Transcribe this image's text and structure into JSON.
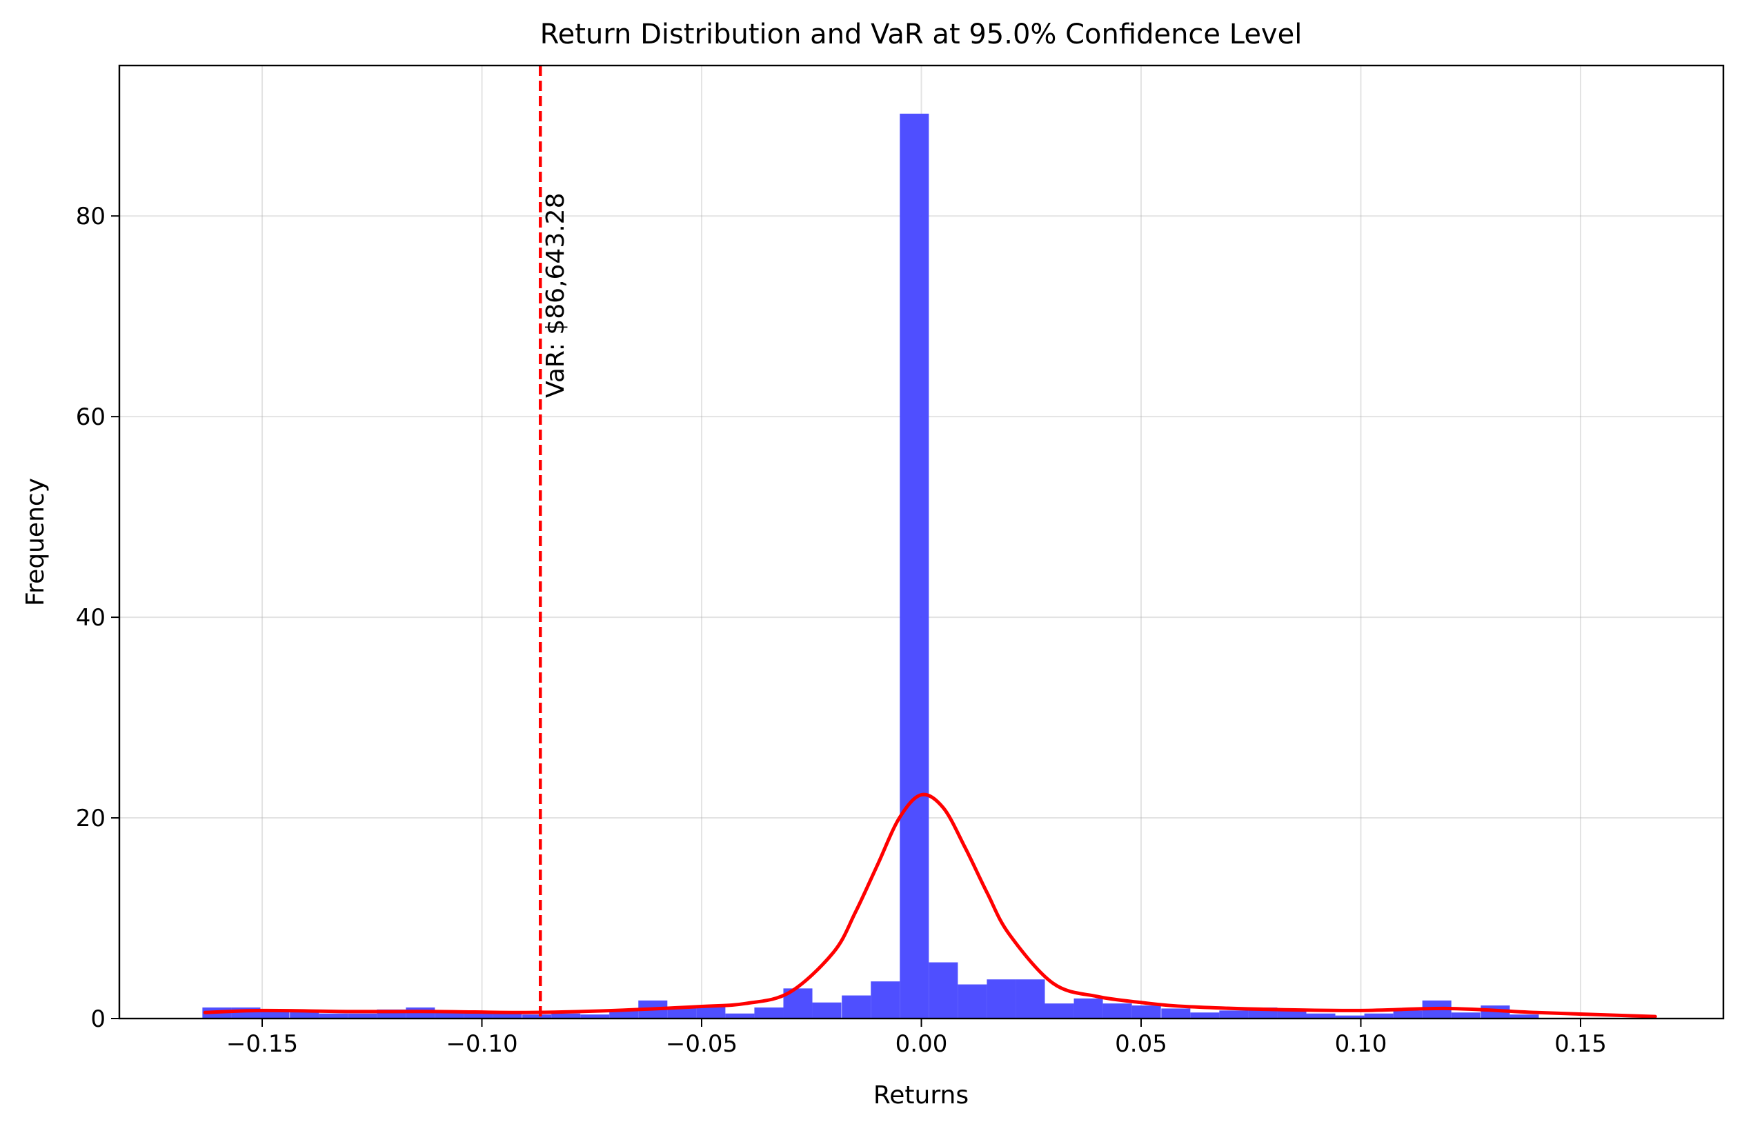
{
  "chart_data": {
    "type": "bar",
    "title": "Return Distribution and VaR at 95.0% Confidence Level",
    "xlabel": "Returns",
    "ylabel": "Frequency",
    "xlim": [
      -0.1825,
      0.1825
    ],
    "ylim": [
      0,
      95
    ],
    "xticks": [
      -0.15,
      -0.1,
      -0.05,
      0.0,
      0.05,
      0.1,
      0.15
    ],
    "xtick_labels": [
      "−0.15",
      "−0.10",
      "−0.05",
      "0.00",
      "0.05",
      "0.10",
      "0.15"
    ],
    "yticks": [
      0,
      20,
      40,
      60,
      80
    ],
    "ytick_labels": [
      "0",
      "20",
      "40",
      "60",
      "80"
    ],
    "grid": true,
    "colors": {
      "bars": "#4b4bff",
      "kde": "#ff0000",
      "var_line": "#ff0000"
    },
    "histogram": {
      "bin_left_edges": [
        -0.1636,
        -0.157,
        -0.1504,
        -0.1437,
        -0.1371,
        -0.1305,
        -0.1239,
        -0.1173,
        -0.1107,
        -0.1041,
        -0.0975,
        -0.0908,
        -0.0842,
        -0.0776,
        -0.071,
        -0.0644,
        -0.0578,
        -0.0512,
        -0.0446,
        -0.038,
        -0.0314,
        -0.0248,
        -0.0181,
        -0.0115,
        -0.0049,
        0.0017,
        0.0083,
        0.0149,
        0.0215,
        0.0281,
        0.0347,
        0.0413,
        0.0479,
        0.0546,
        0.0612,
        0.0678,
        0.0744,
        0.081,
        0.0876,
        0.0942,
        0.1008,
        0.1074,
        0.114,
        0.1206,
        0.1273,
        0.1339
      ],
      "bin_width": 0.0066,
      "counts": [
        1.1,
        1.1,
        0.8,
        0.8,
        0.5,
        0.5,
        0.9,
        1.1,
        0.7,
        0.6,
        0.6,
        0.4,
        0.5,
        0.4,
        0.8,
        1.8,
        1.2,
        1.2,
        0.5,
        1.1,
        3.0,
        1.6,
        2.3,
        3.7,
        90.2,
        5.6,
        3.4,
        3.9,
        3.9,
        1.5,
        2.0,
        1.5,
        1.3,
        1.0,
        0.6,
        0.8,
        1.1,
        0.9,
        0.5,
        0.3,
        0.5,
        0.8,
        1.8,
        0.6,
        1.3,
        0.4
      ]
    },
    "kde": {
      "x": [
        -0.163,
        -0.15,
        -0.13,
        -0.11,
        -0.09,
        -0.07,
        -0.05,
        -0.04,
        -0.03,
        -0.02,
        -0.015,
        -0.01,
        -0.005,
        0.0,
        0.005,
        0.01,
        0.015,
        0.02,
        0.03,
        0.04,
        0.05,
        0.06,
        0.08,
        0.1,
        0.12,
        0.14,
        0.167
      ],
      "y": [
        0.6,
        0.8,
        0.7,
        0.7,
        0.6,
        0.8,
        1.2,
        1.5,
        2.6,
        6.6,
        10.6,
        15.3,
        20.0,
        22.3,
        21.0,
        17.0,
        12.5,
        8.4,
        3.5,
        2.2,
        1.6,
        1.2,
        0.9,
        0.8,
        1.0,
        0.6,
        0.2
      ]
    },
    "var": {
      "x": -0.0867,
      "label": "VaR: $86,643.28"
    }
  }
}
